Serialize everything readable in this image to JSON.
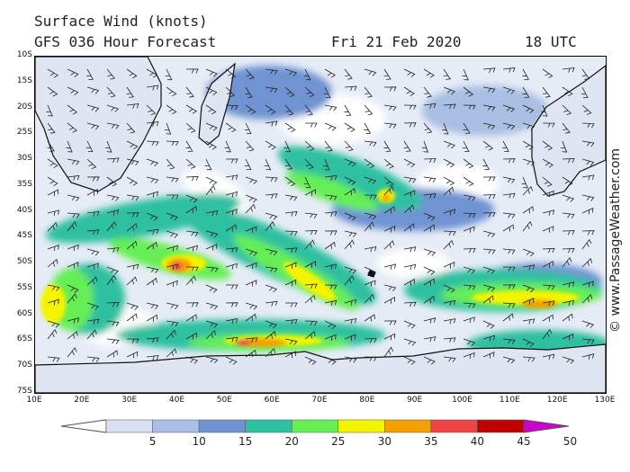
{
  "header": {
    "title_line1": "Surface Wind (knots)",
    "title_line2": "GFS 036 Hour Forecast",
    "date": "Fri 21 Feb 2020",
    "time": "18 UTC"
  },
  "credit": "© www.PassageWeather.com",
  "map": {
    "lat_labels": [
      "10S",
      "15S",
      "20S",
      "25S",
      "30S",
      "35S",
      "40S",
      "45S",
      "50S",
      "55S",
      "60S",
      "65S",
      "70S",
      "75S"
    ],
    "lon_labels": [
      "10E",
      "20E",
      "30E",
      "40E",
      "50E",
      "60E",
      "70E",
      "80E",
      "90E",
      "100E",
      "110E",
      "120E",
      "130E"
    ],
    "lat_range": [
      -10,
      -75
    ],
    "lon_range": [
      10,
      130
    ]
  },
  "legend": {
    "labels": [
      "5",
      "10",
      "15",
      "20",
      "25",
      "30",
      "35",
      "40",
      "45",
      "50"
    ],
    "colors": [
      "#ffffff",
      "#d8e1f2",
      "#a9bfe3",
      "#6f93d2",
      "#2ec0a0",
      "#66ee55",
      "#f4f400",
      "#f5a000",
      "#ee4444",
      "#c00000",
      "#cc00cc"
    ]
  }
}
